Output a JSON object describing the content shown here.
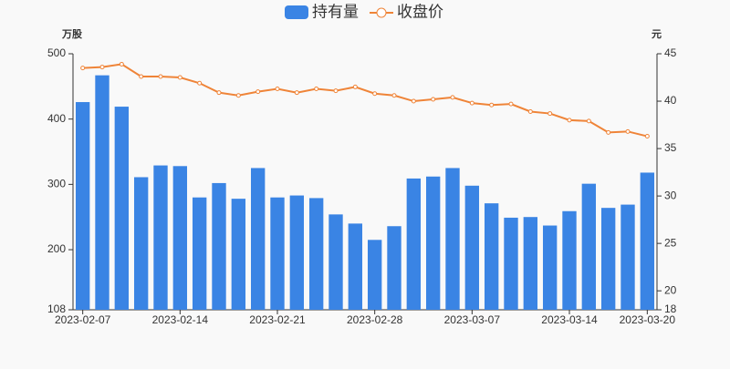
{
  "chart_data": {
    "type": "bar_line",
    "y_label": "万股",
    "y2_label": "元",
    "categories": [
      "2023-02-07",
      null,
      null,
      null,
      null,
      "2023-02-14",
      null,
      null,
      null,
      null,
      "2023-02-21",
      null,
      null,
      null,
      null,
      "2023-02-28",
      null,
      null,
      null,
      null,
      "2023-03-07",
      null,
      null,
      null,
      null,
      "2023-03-14",
      null,
      null,
      null,
      "2023-03-20"
    ],
    "series": [
      {
        "name": "持有量",
        "type": "bar",
        "color": "#3a84e4",
        "values": [
          426,
          467,
          419,
          311,
          329,
          328,
          280,
          302,
          278,
          325,
          280,
          283,
          279,
          254,
          240,
          215,
          236,
          309,
          312,
          325,
          298,
          271,
          249,
          250,
          237,
          259,
          301,
          264,
          269,
          318
        ]
      },
      {
        "name": "收盘价",
        "type": "line",
        "axis": "y2",
        "color": "#ef8438",
        "values": [
          43.5,
          43.6,
          43.9,
          42.6,
          42.6,
          42.5,
          41.9,
          40.9,
          40.6,
          41.0,
          41.3,
          40.9,
          41.3,
          41.1,
          41.5,
          40.8,
          40.6,
          40.0,
          40.2,
          40.4,
          39.8,
          39.6,
          39.7,
          38.9,
          38.7,
          38.0,
          37.9,
          36.7,
          36.8,
          36.3
        ]
      }
    ],
    "ylim": [
      108,
      500
    ],
    "yticks": [
      108,
      200,
      300,
      400,
      500
    ],
    "y2lim": [
      18,
      45
    ],
    "y2ticks": [
      18,
      20,
      25,
      30,
      35,
      40,
      45
    ],
    "grid": false,
    "legend": "top"
  }
}
